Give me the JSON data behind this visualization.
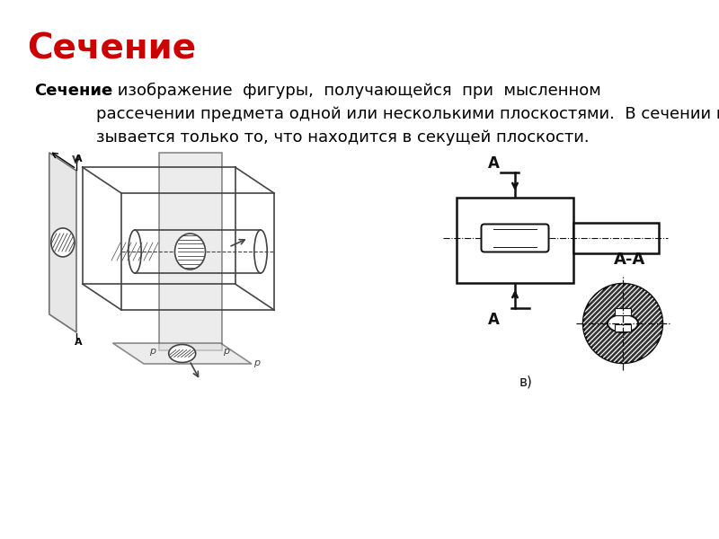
{
  "title": "Сечение",
  "title_color": "#cc0000",
  "title_fontsize": 28,
  "body_text_bold": "Сечение",
  "body_text_rest": " -  изображение  фигуры,  получающейся  при  мысленном\nрассечении предмета одной или несколькими плоскостями.  В сечении пока-\nзывается только то, что находится в секущей плоскости.",
  "body_fontsize": 13,
  "background_color": "#ffffff",
  "label_v": "в)",
  "label_aa": "А-А",
  "label_a": "А"
}
